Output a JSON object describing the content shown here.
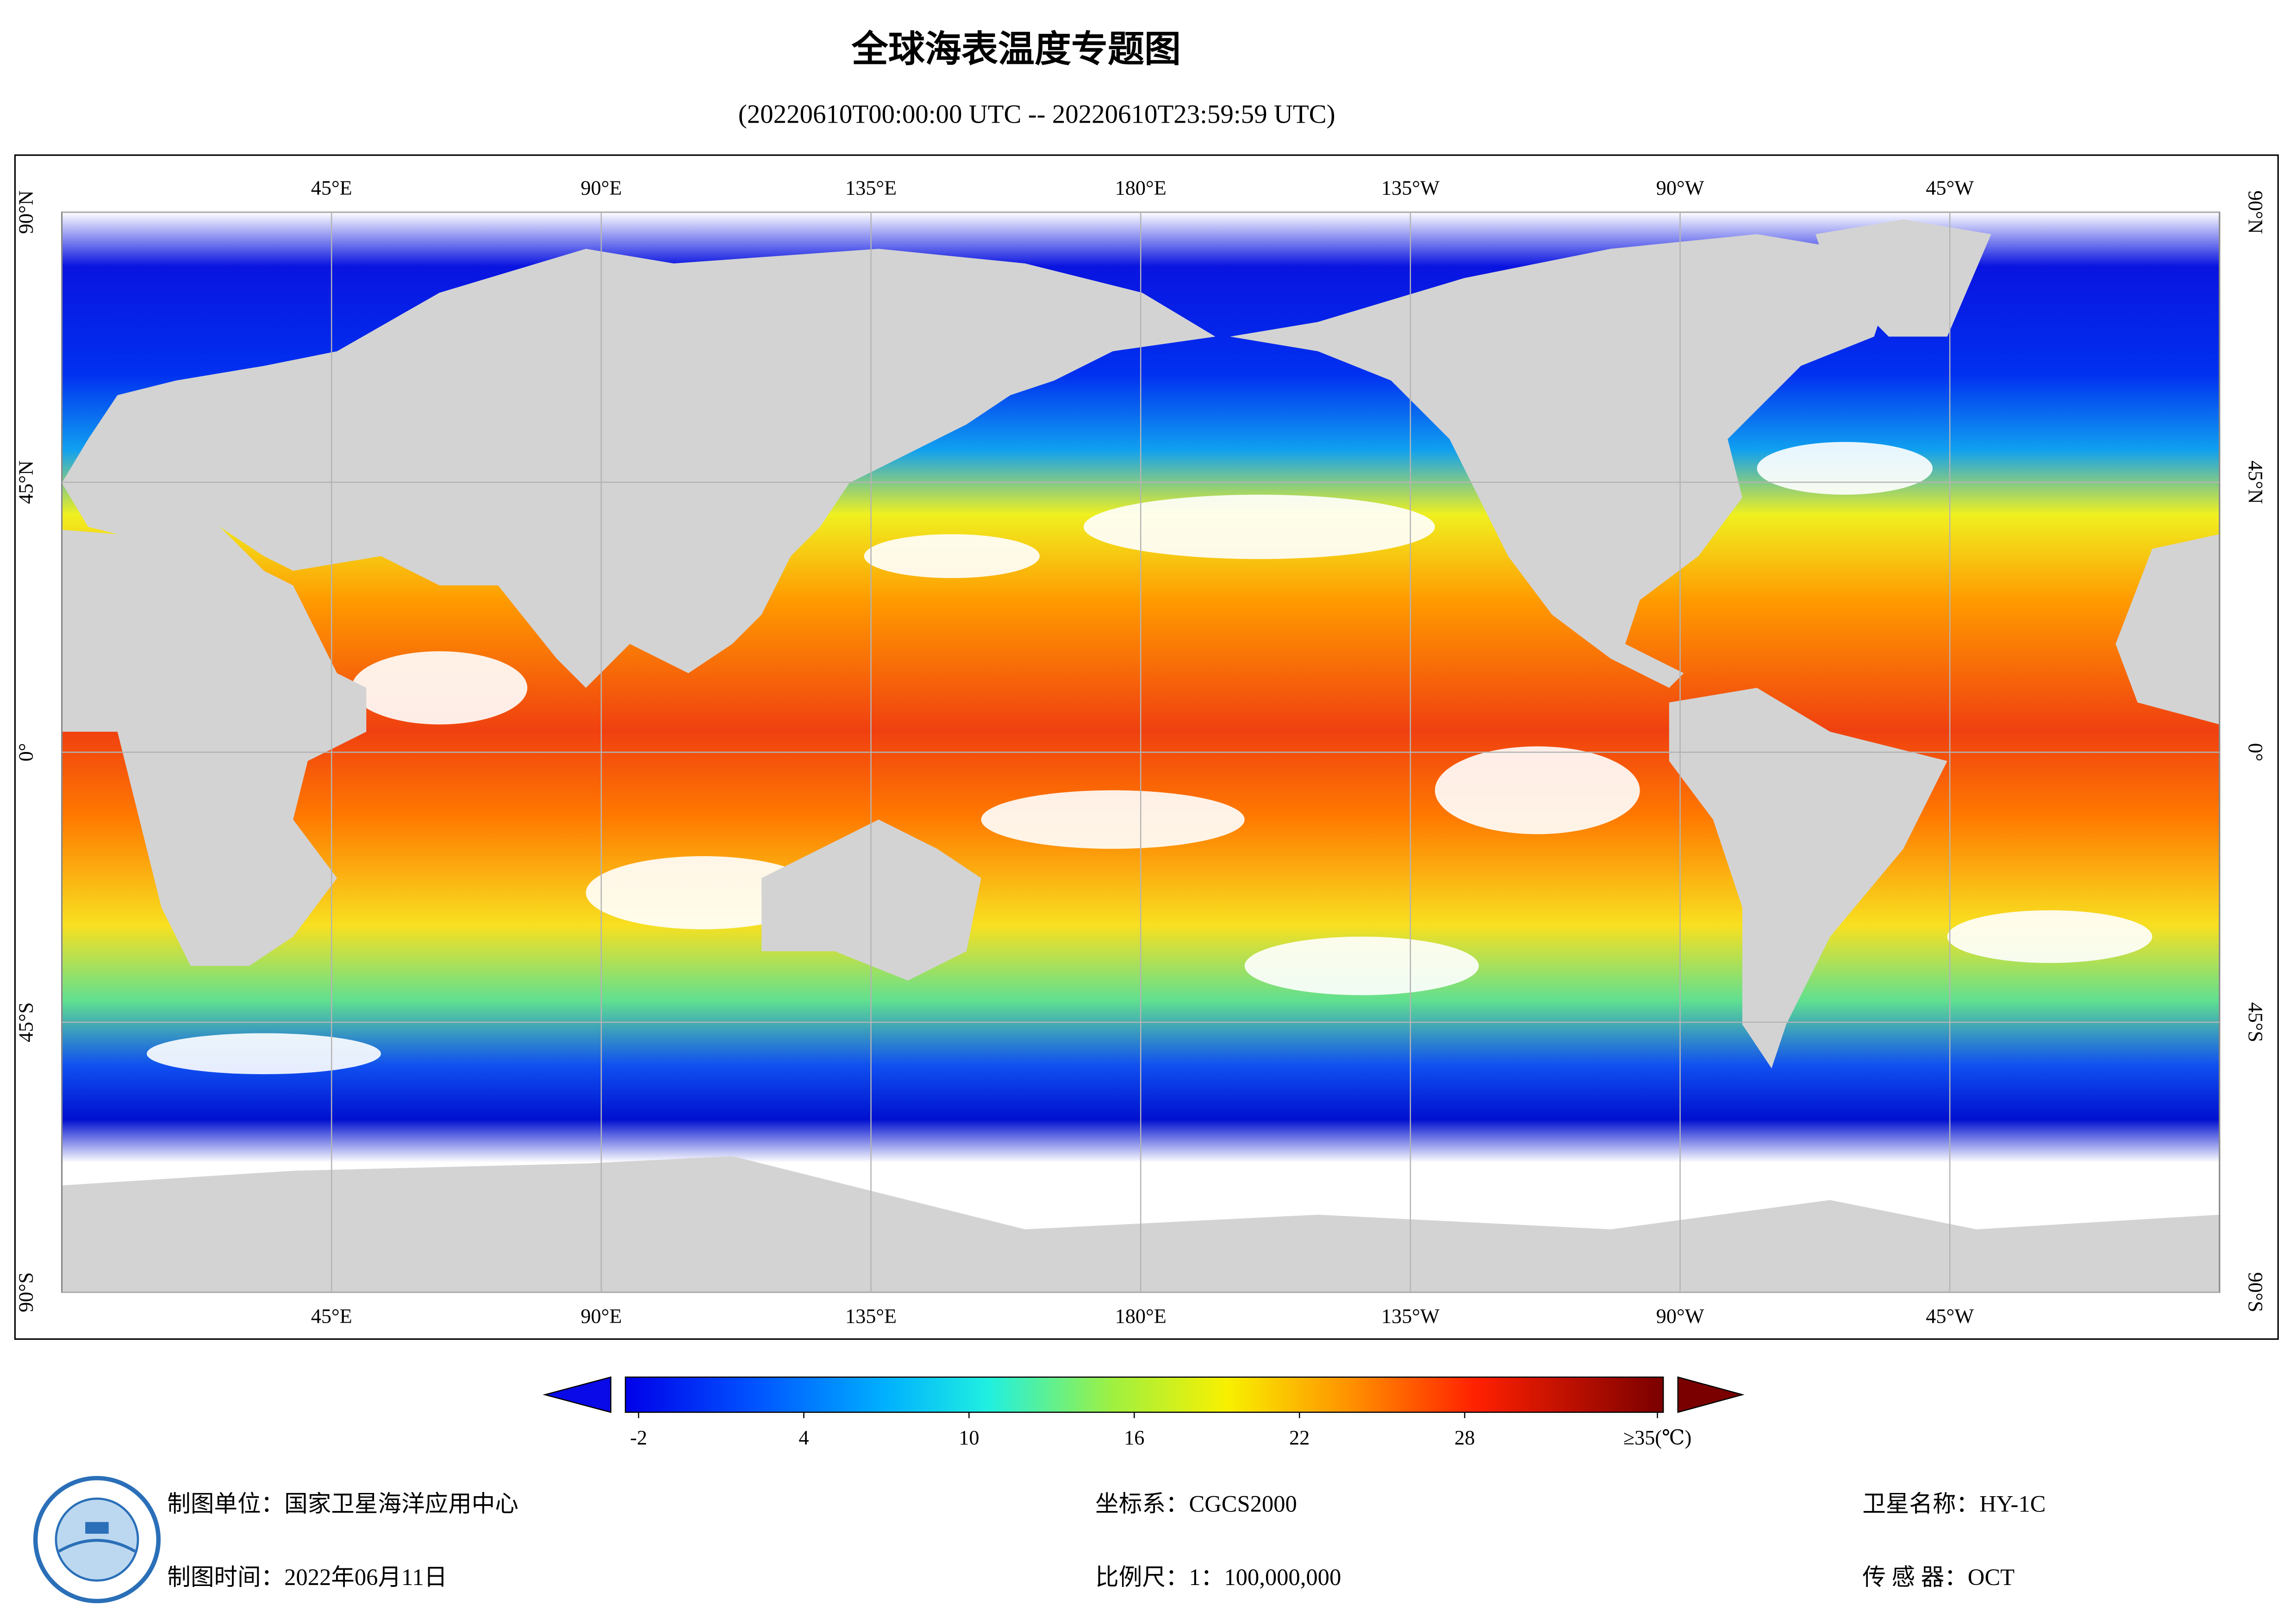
{
  "title": "全球海表温度专题图",
  "subtitle": "(20220610T00:00:00 UTC -- 20220610T23:59:59 UTC)",
  "map": {
    "lon_labels": [
      {
        "value": 45,
        "label": "45°E"
      },
      {
        "value": 90,
        "label": "90°E"
      },
      {
        "value": 135,
        "label": "135°E"
      },
      {
        "value": 180,
        "label": "180°E"
      },
      {
        "value": -135,
        "label": "135°W"
      },
      {
        "value": -90,
        "label": "90°W"
      },
      {
        "value": -45,
        "label": "45°W"
      }
    ],
    "lat_labels": [
      {
        "value": 90,
        "label": "90°N"
      },
      {
        "value": 45,
        "label": "45°N"
      },
      {
        "value": 0,
        "label": "0°"
      },
      {
        "value": -45,
        "label": "45°S"
      },
      {
        "value": -90,
        "label": "90°S"
      }
    ]
  },
  "colorbar": {
    "range": [
      -2,
      35
    ],
    "ticks": [
      -2,
      4,
      10,
      16,
      22,
      28,
      {
        "value": 35,
        "label": "≥35(℃)"
      }
    ]
  },
  "footer": {
    "producer": "制图单位：国家卫星海洋应用中心",
    "date": "制图时间：2022年06月11日",
    "crs": "坐标系：CGCS2000",
    "scale": "比例尺：1：100,000,000",
    "satellite": "卫星名称：HY-1C",
    "sensor": "传 感 器：OCT"
  }
}
